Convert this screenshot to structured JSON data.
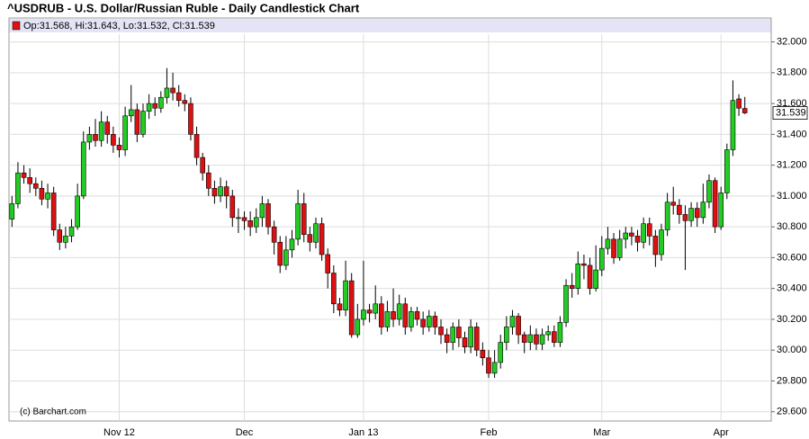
{
  "chart_data": {
    "type": "candlestick",
    "title": "^USDRUB - U.S. Dollar/Russian Ruble - Daily Candlestick Chart",
    "legend": "Op:31.568, Hi:31.643, Lo:31.532, Cl:31.539",
    "watermark": "(c) Barchart.com",
    "up_color": "#22cc22",
    "down_color": "#dd1111",
    "grid": true,
    "ylim": [
      29.54,
      32.05
    ],
    "yticks": [
      {
        "value": 29.6,
        "label": "29.600"
      },
      {
        "value": 29.8,
        "label": "29.800"
      },
      {
        "value": 30.0,
        "label": "30.000"
      },
      {
        "value": 30.2,
        "label": "30.200"
      },
      {
        "value": 30.4,
        "label": "30.400"
      },
      {
        "value": 30.6,
        "label": "30.600"
      },
      {
        "value": 30.8,
        "label": "30.800"
      },
      {
        "value": 31.0,
        "label": "31.000"
      },
      {
        "value": 31.2,
        "label": "31.200"
      },
      {
        "value": 31.4,
        "label": "31.400"
      },
      {
        "value": 31.6,
        "label": "31.600"
      },
      {
        "value": 31.8,
        "label": "31.800"
      },
      {
        "value": 32.0,
        "label": "32.000"
      }
    ],
    "categories": [
      null,
      null,
      null,
      null,
      null,
      null,
      null,
      null,
      null,
      null,
      null,
      null,
      null,
      null,
      null,
      null,
      null,
      null,
      "Nov 12",
      null,
      null,
      null,
      null,
      null,
      null,
      null,
      null,
      null,
      null,
      null,
      null,
      null,
      null,
      null,
      null,
      null,
      null,
      null,
      null,
      "Dec",
      null,
      null,
      null,
      null,
      null,
      null,
      null,
      null,
      null,
      null,
      null,
      null,
      null,
      null,
      null,
      null,
      null,
      null,
      null,
      "Jan 13",
      null,
      null,
      null,
      null,
      null,
      null,
      null,
      null,
      null,
      null,
      null,
      null,
      null,
      null,
      null,
      null,
      null,
      null,
      null,
      null,
      "Feb",
      null,
      null,
      null,
      null,
      null,
      null,
      null,
      null,
      null,
      null,
      null,
      null,
      null,
      null,
      null,
      null,
      null,
      null,
      "Mar",
      null,
      null,
      null,
      null,
      null,
      null,
      null,
      null,
      null,
      null,
      null,
      null,
      null,
      null,
      null,
      null,
      null,
      null,
      null,
      "Apr",
      null,
      null,
      null,
      null
    ],
    "open": [
      30.85,
      30.95,
      31.15,
      31.12,
      31.08,
      31.05,
      30.98,
      31.02,
      30.78,
      30.7,
      30.74,
      30.8,
      31.0,
      31.35,
      31.4,
      31.36,
      31.48,
      31.4,
      31.33,
      31.3,
      31.52,
      31.56,
      31.4,
      31.55,
      31.6,
      31.57,
      31.64,
      31.7,
      31.67,
      31.62,
      31.6,
      31.4,
      31.25,
      31.15,
      31.05,
      31.0,
      31.06,
      31.0,
      30.86,
      30.86,
      30.84,
      30.8,
      30.86,
      30.95,
      30.8,
      30.7,
      30.55,
      30.65,
      30.72,
      30.95,
      30.75,
      30.7,
      30.82,
      30.62,
      30.5,
      30.3,
      30.26,
      30.45,
      30.1,
      30.2,
      30.26,
      30.24,
      30.3,
      30.15,
      30.25,
      30.2,
      30.3,
      30.15,
      30.25,
      30.2,
      30.15,
      30.22,
      30.15,
      30.1,
      30.05,
      30.15,
      30.08,
      30.02,
      30.15,
      30.0,
      29.95,
      29.85,
      29.92,
      30.05,
      30.15,
      30.22,
      30.1,
      30.05,
      30.1,
      30.04,
      30.1,
      30.12,
      30.05,
      30.18,
      30.42,
      30.4,
      30.56,
      30.55,
      30.4,
      30.52,
      30.66,
      30.72,
      30.6,
      30.72,
      30.76,
      30.74,
      30.7,
      30.82,
      30.74,
      30.62,
      30.78,
      30.96,
      30.94,
      30.88,
      30.84,
      30.92,
      30.86,
      30.96,
      31.1,
      30.8,
      31.02,
      31.3,
      31.63,
      31.568
    ],
    "high": [
      31.0,
      31.22,
      31.2,
      31.18,
      31.12,
      31.1,
      31.08,
      31.06,
      30.82,
      30.8,
      30.85,
      31.08,
      31.42,
      31.45,
      31.5,
      31.55,
      31.52,
      31.45,
      31.38,
      31.58,
      31.72,
      31.6,
      31.6,
      31.66,
      31.64,
      31.68,
      31.83,
      31.8,
      31.72,
      31.66,
      31.64,
      31.45,
      31.28,
      31.2,
      31.1,
      31.12,
      31.1,
      31.04,
      30.92,
      30.9,
      30.9,
      30.92,
      31.0,
      30.98,
      30.84,
      30.74,
      30.74,
      30.78,
      31.04,
      31.02,
      30.8,
      30.86,
      30.86,
      30.66,
      30.55,
      30.34,
      30.58,
      30.5,
      30.3,
      30.58,
      30.3,
      30.42,
      30.35,
      30.32,
      30.4,
      30.36,
      30.34,
      30.28,
      30.28,
      30.25,
      30.26,
      30.25,
      30.2,
      30.14,
      30.18,
      30.2,
      30.12,
      30.2,
      30.18,
      30.05,
      30.0,
      30.0,
      30.1,
      30.22,
      30.26,
      30.24,
      30.12,
      30.16,
      30.14,
      30.14,
      30.16,
      30.16,
      30.22,
      30.46,
      30.5,
      30.64,
      30.62,
      30.6,
      30.68,
      30.74,
      30.8,
      30.76,
      30.78,
      30.8,
      30.8,
      30.78,
      30.86,
      30.86,
      30.78,
      30.82,
      31.02,
      31.06,
      30.98,
      30.94,
      30.96,
      30.96,
      31.08,
      31.14,
      31.12,
      31.06,
      31.34,
      31.75,
      31.66,
      31.643
    ],
    "low": [
      30.8,
      30.92,
      31.08,
      31.02,
      31.0,
      30.94,
      30.92,
      30.74,
      30.65,
      30.66,
      30.7,
      30.78,
      30.98,
      31.3,
      31.32,
      31.32,
      31.34,
      31.28,
      31.25,
      31.26,
      31.48,
      31.35,
      31.38,
      31.5,
      31.52,
      31.54,
      31.6,
      31.62,
      31.58,
      31.55,
      31.36,
      31.2,
      31.1,
      31.0,
      30.95,
      30.96,
      30.92,
      30.8,
      30.76,
      30.78,
      30.74,
      30.76,
      30.8,
      30.75,
      30.62,
      30.5,
      30.52,
      30.6,
      30.68,
      30.7,
      30.64,
      30.66,
      30.58,
      30.4,
      30.24,
      30.22,
      30.22,
      30.08,
      30.08,
      30.16,
      30.18,
      30.2,
      30.1,
      30.12,
      30.15,
      30.16,
      30.1,
      30.12,
      30.16,
      30.1,
      30.12,
      30.1,
      30.04,
      29.98,
      30.0,
      30.02,
      29.98,
      29.98,
      29.96,
      29.9,
      29.82,
      29.82,
      29.88,
      30.0,
      30.1,
      30.04,
      29.98,
      30.0,
      30.0,
      30.0,
      30.06,
      30.02,
      30.02,
      30.15,
      30.34,
      30.36,
      30.46,
      30.36,
      30.38,
      30.48,
      30.62,
      30.56,
      30.58,
      30.66,
      30.68,
      30.64,
      30.66,
      30.68,
      30.54,
      30.58,
      30.74,
      30.88,
      30.82,
      30.52,
      30.8,
      30.8,
      30.82,
      30.92,
      30.76,
      30.78,
      30.98,
      31.26,
      31.52,
      31.532
    ],
    "close": [
      30.95,
      31.15,
      31.12,
      31.08,
      31.05,
      30.98,
      31.02,
      30.78,
      30.7,
      30.74,
      30.8,
      31.0,
      31.35,
      31.4,
      31.36,
      31.48,
      31.4,
      31.33,
      31.3,
      31.52,
      31.56,
      31.4,
      31.55,
      31.6,
      31.57,
      31.64,
      31.7,
      31.67,
      31.62,
      31.6,
      31.4,
      31.25,
      31.15,
      31.05,
      31.0,
      31.06,
      31.0,
      30.86,
      30.86,
      30.84,
      30.8,
      30.86,
      30.95,
      30.8,
      30.7,
      30.55,
      30.65,
      30.72,
      30.95,
      30.75,
      30.7,
      30.82,
      30.62,
      30.5,
      30.3,
      30.26,
      30.45,
      30.1,
      30.2,
      30.26,
      30.24,
      30.3,
      30.15,
      30.25,
      30.2,
      30.3,
      30.15,
      30.25,
      30.2,
      30.15,
      30.22,
      30.15,
      30.1,
      30.05,
      30.15,
      30.08,
      30.02,
      30.15,
      30.0,
      29.95,
      29.85,
      29.92,
      30.05,
      30.15,
      30.22,
      30.1,
      30.05,
      30.1,
      30.04,
      30.1,
      30.12,
      30.05,
      30.18,
      30.42,
      30.4,
      30.56,
      30.55,
      30.4,
      30.52,
      30.66,
      30.72,
      30.6,
      30.72,
      30.76,
      30.74,
      30.7,
      30.82,
      30.74,
      30.62,
      30.78,
      30.96,
      30.94,
      30.88,
      30.84,
      30.92,
      30.86,
      30.96,
      31.1,
      30.8,
      31.02,
      31.3,
      31.62,
      31.57,
      31.539
    ]
  }
}
